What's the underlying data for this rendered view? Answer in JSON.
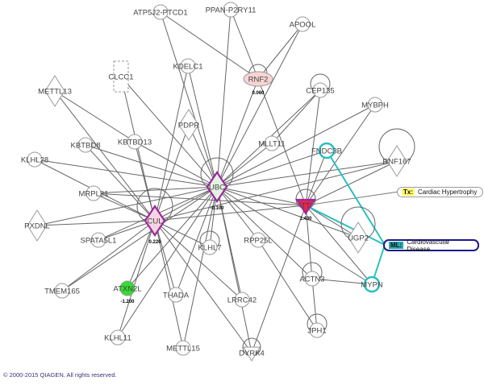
{
  "nodes": [
    {
      "id": "ATP5J2-PTCD1",
      "shape": "circle"
    },
    {
      "id": "PPAN-P2RY11",
      "shape": "circle"
    },
    {
      "id": "APOOL",
      "shape": "circle"
    },
    {
      "id": "KDELC1",
      "shape": "circle"
    },
    {
      "id": "CLCC1",
      "shape": "rect-dashed"
    },
    {
      "id": "METTL13",
      "shape": "diamond"
    },
    {
      "id": "RNF2",
      "shape": "ellipse",
      "fill": "#f7d4d4",
      "value": "0.060",
      "self_loop": true
    },
    {
      "id": "CEP135",
      "shape": "circle",
      "self_loop": true
    },
    {
      "id": "MYBPH",
      "shape": "circle"
    },
    {
      "id": "PDPR",
      "shape": "diamond"
    },
    {
      "id": "KBTBD8",
      "shape": "circle"
    },
    {
      "id": "KBTBD13",
      "shape": "circle"
    },
    {
      "id": "KLHL28",
      "shape": "circle"
    },
    {
      "id": "MLLT11",
      "shape": "circle"
    },
    {
      "id": "FNDC3B",
      "shape": "circle",
      "highlight": "#2bbfbf"
    },
    {
      "id": "RNF167",
      "shape": "diamond",
      "self_loop": true
    },
    {
      "id": "UBC",
      "shape": "diamond",
      "fill": "#e4f2e4",
      "stroke": "#9b2a9b",
      "value": "-0.100",
      "self_loop": true
    },
    {
      "id": "CUL",
      "shape": "diamond",
      "fill": "#f7d4e4",
      "stroke": "#9b2a9b",
      "value": "0.220",
      "self_loop": true
    },
    {
      "id": "TT",
      "shape": "triangle-down",
      "fill": "#e8244a",
      "stroke": "#9b2a9b",
      "value": "1.430",
      "self_loop": true
    },
    {
      "id": "MRPL21",
      "shape": "circle"
    },
    {
      "id": "PXDNL",
      "shape": "diamond"
    },
    {
      "id": "SPATA5L1",
      "shape": "circle"
    },
    {
      "id": "KLHL7",
      "shape": "circle",
      "self_loop": true
    },
    {
      "id": "RPP25L",
      "shape": "circle"
    },
    {
      "id": "UGP2",
      "shape": "diamond",
      "self_loop": true
    },
    {
      "id": "TMEM165",
      "shape": "circle"
    },
    {
      "id": "ATXN2L",
      "shape": "circle",
      "fill": "#33dd33",
      "value": "-1.200"
    },
    {
      "id": "THADA",
      "shape": "circle"
    },
    {
      "id": "LRRC42",
      "shape": "circle"
    },
    {
      "id": "ACTN3",
      "shape": "circle",
      "self_loop": true
    },
    {
      "id": "MYPN",
      "shape": "circle",
      "highlight": "#2bbfbf"
    },
    {
      "id": "JPH1",
      "shape": "circle",
      "self_loop": true
    },
    {
      "id": "KLHL11",
      "shape": "circle"
    },
    {
      "id": "METTL15",
      "shape": "circle"
    },
    {
      "id": "DYRK4",
      "shape": "triangle-down",
      "self_loop": true
    }
  ],
  "edges": [
    [
      "UBC",
      "ATP5J2-PTCD1"
    ],
    [
      "UBC",
      "PPAN-P2RY11"
    ],
    [
      "UBC",
      "KDELC1"
    ],
    [
      "UBC",
      "CLCC1"
    ],
    [
      "UBC",
      "PDPR"
    ],
    [
      "UBC",
      "KBTBD8"
    ],
    [
      "UBC",
      "KBTBD13"
    ],
    [
      "UBC",
      "KLHL28"
    ],
    [
      "UBC",
      "MLLT11"
    ],
    [
      "UBC",
      "CEP135"
    ],
    [
      "UBC",
      "MYBPH"
    ],
    [
      "UBC",
      "FNDC3B"
    ],
    [
      "UBC",
      "RNF167"
    ],
    [
      "UBC",
      "MRPL21"
    ],
    [
      "UBC",
      "PXDNL"
    ],
    [
      "UBC",
      "CUL"
    ],
    [
      "UBC",
      "TT"
    ],
    [
      "UBC",
      "KLHL7"
    ],
    [
      "UBC",
      "RPP25L"
    ],
    [
      "UBC",
      "ATXN2L"
    ],
    [
      "UBC",
      "THADA"
    ],
    [
      "UBC",
      "LRRC42"
    ],
    [
      "UBC",
      "KLHL11"
    ],
    [
      "UBC",
      "METTL15"
    ],
    [
      "UBC",
      "DYRK4"
    ],
    [
      "UBC",
      "TMEM165"
    ],
    [
      "UBC",
      "SPATA5L1"
    ],
    [
      "UBC",
      "UGP2"
    ],
    [
      "UBC",
      "ACTN3"
    ],
    [
      "UBC",
      "MYPN"
    ],
    [
      "UBC",
      "APOOL"
    ],
    [
      "UBC",
      "RNF2"
    ],
    [
      "CUL",
      "METTL13"
    ],
    [
      "CUL",
      "KBTBD8"
    ],
    [
      "CUL",
      "KBTBD13"
    ],
    [
      "CUL",
      "KLHL28"
    ],
    [
      "CUL",
      "MRPL21"
    ],
    [
      "CUL",
      "PXDNL"
    ],
    [
      "CUL",
      "SPATA5L1"
    ],
    [
      "CUL",
      "TMEM165"
    ],
    [
      "CUL",
      "ATXN2L"
    ],
    [
      "CUL",
      "THADA"
    ],
    [
      "CUL",
      "KLHL11"
    ],
    [
      "CUL",
      "KLHL7"
    ],
    [
      "CUL",
      "KDELC1"
    ],
    [
      "CUL",
      "PDPR"
    ],
    [
      "CUL",
      "TT"
    ],
    [
      "CUL",
      "RNF167"
    ],
    [
      "CUL",
      "LRRC42"
    ],
    [
      "CUL",
      "DYRK4"
    ],
    [
      "CUL",
      "CLCC1"
    ],
    [
      "CUL",
      "METTL15"
    ],
    [
      "TT",
      "RNF2"
    ],
    [
      "TT",
      "CEP135"
    ],
    [
      "TT",
      "MYBPH"
    ],
    [
      "TT",
      "FNDC3B"
    ],
    [
      "TT",
      "UGP2"
    ],
    [
      "TT",
      "ACTN3"
    ],
    [
      "TT",
      "MYPN"
    ],
    [
      "TT",
      "DYRK4"
    ],
    [
      "TT",
      "MRPL21"
    ],
    [
      "TT",
      "RNF167"
    ],
    [
      "RNF2",
      "ATP5J2-PTCD1"
    ],
    [
      "RNF2",
      "PPAN-P2RY11"
    ],
    [
      "RNF2",
      "APOOL"
    ],
    [
      "ACTN3",
      "MYPN"
    ],
    [
      "ACTN3",
      "JPH1"
    ],
    [
      "RPP25L",
      "JPH1"
    ],
    [
      "METTL13",
      "KBTBD13"
    ],
    [
      "MLLT11",
      "CEP135"
    ]
  ],
  "annotations": {
    "tx": {
      "tag": "Tx:",
      "label": "Cardiac Hypertrophy",
      "tag_color": "#ffff66"
    },
    "ml": {
      "tag": "ML:",
      "label": "Cardiovascular Disease",
      "tag_color": "#2aa7a7",
      "border": "#1a1a8c"
    }
  },
  "annotation_edges": [
    [
      "TT",
      "tx",
      "#777777"
    ],
    [
      "TT",
      "ml",
      "#2bbfbf"
    ],
    [
      "FNDC3B",
      "ml",
      "#2bbfbf"
    ],
    [
      "MYPN",
      "ml",
      "#2bbfbf"
    ]
  ],
  "copyright": "© 2000-2015 QIAGEN. All rights reserved."
}
